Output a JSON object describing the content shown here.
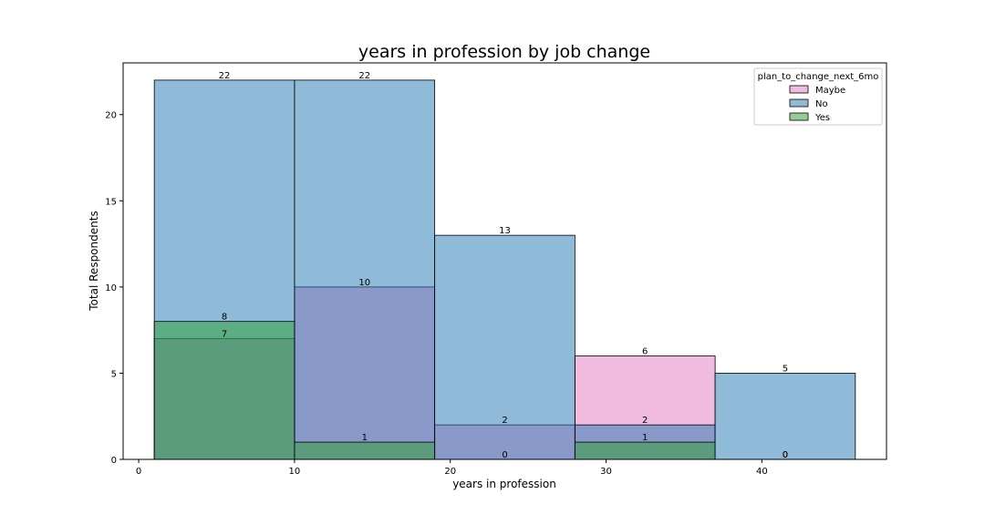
{
  "chart_data": {
    "type": "bar",
    "title": "years in profession by job change",
    "xlabel": "years in profession",
    "ylabel": "Total Respondents",
    "xlim": [
      -1,
      48
    ],
    "ylim": [
      0,
      23
    ],
    "xticks": [
      0,
      10,
      20,
      30,
      40
    ],
    "yticks": [
      0,
      5,
      10,
      15,
      20
    ],
    "bin_edges": [
      1,
      10,
      19,
      28,
      37,
      46
    ],
    "legend_title": "plan_to_change_next_6mo",
    "legend_position": "top-right",
    "series": [
      {
        "name": "Maybe",
        "color": "#e377c2",
        "values": [
          7,
          10,
          2,
          6,
          0
        ]
      },
      {
        "name": "No",
        "color": "#1f77b4",
        "values": [
          22,
          22,
          13,
          2,
          5
        ]
      },
      {
        "name": "Yes",
        "color": "#2ca02c",
        "values": [
          8,
          1,
          0,
          1,
          0
        ]
      }
    ],
    "bar_labels": [
      {
        "bin": 0,
        "value": "22"
      },
      {
        "bin": 0,
        "value": "8"
      },
      {
        "bin": 0,
        "value": "7"
      },
      {
        "bin": 1,
        "value": "22"
      },
      {
        "bin": 1,
        "value": "10"
      },
      {
        "bin": 1,
        "value": "1"
      },
      {
        "bin": 2,
        "value": "13"
      },
      {
        "bin": 2,
        "value": "2"
      },
      {
        "bin": 2,
        "value": "0"
      },
      {
        "bin": 3,
        "value": "6"
      },
      {
        "bin": 3,
        "value": "2"
      },
      {
        "bin": 3,
        "value": "1"
      },
      {
        "bin": 4,
        "value": "5"
      },
      {
        "bin": 4,
        "value": "0"
      },
      {
        "bin": 4,
        "value": "0"
      }
    ]
  }
}
